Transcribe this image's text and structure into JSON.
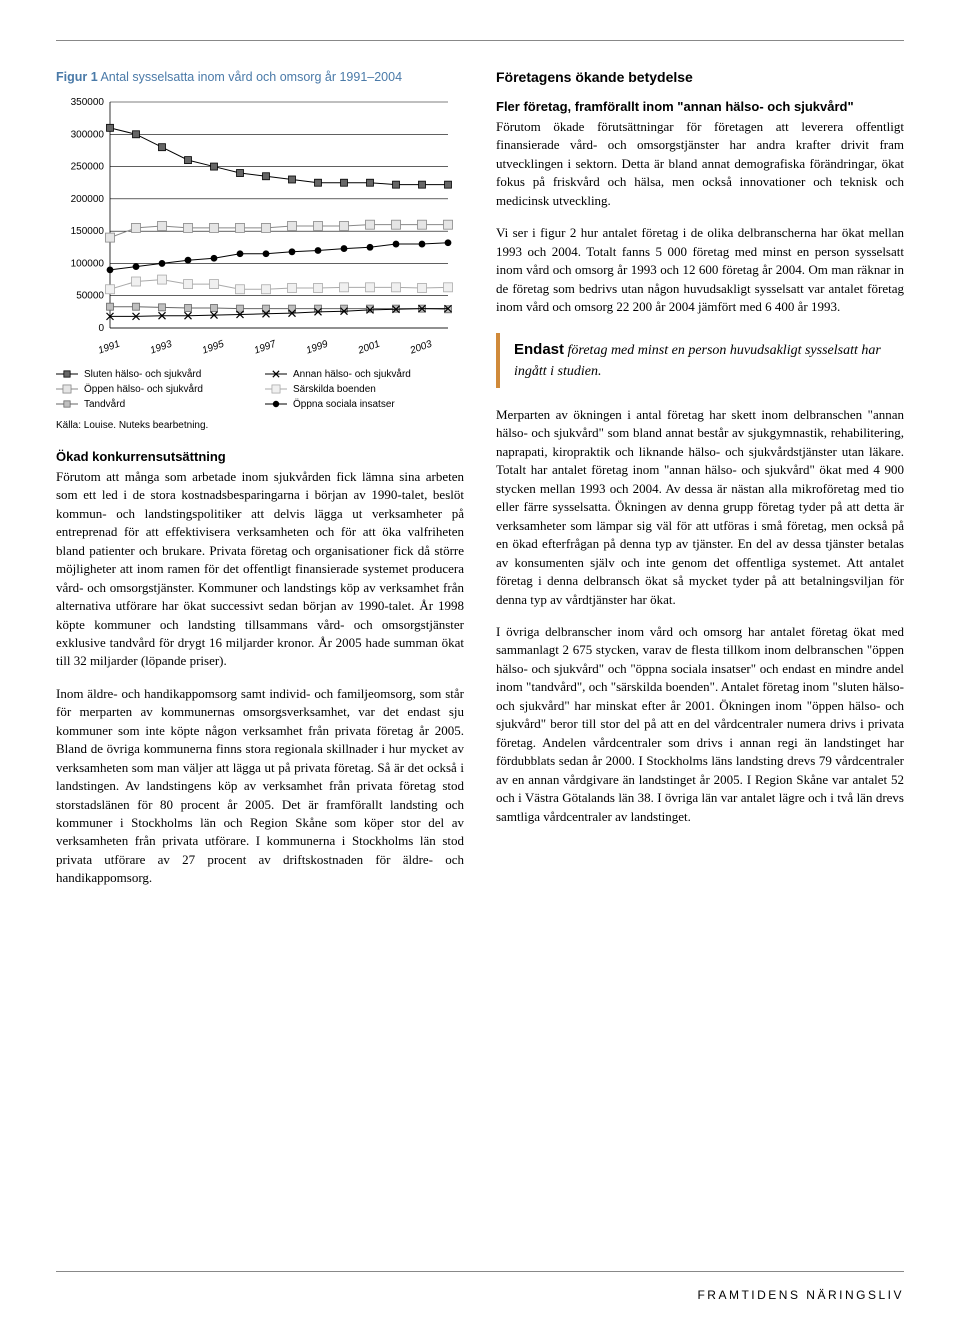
{
  "figure": {
    "label": "Figur 1",
    "title": "Antal sysselsatta inom vård och omsorg år 1991–2004",
    "type": "line",
    "x_categories": [
      "1991",
      "1992",
      "1993",
      "1994",
      "1995",
      "1996",
      "1997",
      "1998",
      "1999",
      "2000",
      "2001",
      "2002",
      "2003",
      "2004"
    ],
    "x_ticks_shown": [
      "1991",
      "1993",
      "1995",
      "1997",
      "1999",
      "2001",
      "2003"
    ],
    "ylim": [
      0,
      350000
    ],
    "ytick_step": 50000,
    "yticks": [
      "0",
      "50000",
      "100000",
      "150000",
      "200000",
      "250000",
      "300000",
      "350000"
    ],
    "background_color": "#ffffff",
    "grid_color": "#000000",
    "label_fontsize": 10,
    "series": [
      {
        "name": "Sluten hälso- och sjukvård",
        "marker": "square",
        "size": 7,
        "fill": "#666666",
        "stroke": "#000000",
        "values": [
          310000,
          300000,
          280000,
          260000,
          250000,
          240000,
          235000,
          230000,
          225000,
          225000,
          225000,
          222000,
          222000,
          222000
        ]
      },
      {
        "name": "Öppen hälso- och sjukvård",
        "marker": "square",
        "size": 9,
        "fill": "#e5e5e5",
        "stroke": "#888888",
        "values": [
          140000,
          155000,
          158000,
          155000,
          155000,
          155000,
          155000,
          158000,
          158000,
          158000,
          160000,
          160000,
          160000,
          160000
        ]
      },
      {
        "name": "Tandvård",
        "marker": "square",
        "size": 7,
        "fill": "#bfbfbf",
        "stroke": "#666666",
        "values": [
          33000,
          33000,
          32000,
          31000,
          31000,
          30000,
          30000,
          30000,
          30000,
          30000,
          30000,
          30000,
          30000,
          29000
        ]
      },
      {
        "name": "Annan hälso- och sjukvård",
        "marker": "x",
        "size": 7,
        "fill": "none",
        "stroke": "#000000",
        "values": [
          18000,
          18000,
          19000,
          19000,
          20000,
          21000,
          22000,
          23000,
          25000,
          26000,
          28000,
          29000,
          30000,
          30000
        ]
      },
      {
        "name": "Särskilda boenden",
        "marker": "square",
        "size": 9,
        "fill": "#f0f0f0",
        "stroke": "#aaaaaa",
        "values": [
          60000,
          72000,
          75000,
          68000,
          68000,
          60000,
          60000,
          62000,
          62000,
          63000,
          63000,
          63000,
          62000,
          63000
        ]
      },
      {
        "name": "Öppna sociala insatser",
        "marker": "circle",
        "size": 6,
        "fill": "#000000",
        "stroke": "#000000",
        "values": [
          90000,
          95000,
          100000,
          105000,
          108000,
          115000,
          115000,
          118000,
          120000,
          123000,
          125000,
          130000,
          130000,
          132000
        ]
      }
    ],
    "legend_layout": "2col",
    "source": "Källa: Louise. Nuteks bearbetning."
  },
  "left": {
    "h1": "Ökad konkurrensutsättning",
    "p1": "Förutom att många som arbetade inom sjukvården fick lämna sina arbeten som ett led i de stora kostnadsbesparingarna i början av 1990-talet, beslöt kommun- och landstingspolitiker att delvis lägga ut verksamheter på entreprenad för att effektivisera verksamheten och för att öka valfriheten bland patienter och brukare. Privata företag och organisationer fick då större möjligheter att inom ramen för det offentligt finansierade systemet producera vård- och omsorgstjänster. Kommuner och landstings köp av verksamhet från alternativa utförare har ökat successivt sedan början av 1990-talet. År 1998 köpte kommuner och landsting tillsammans vård- och omsorgstjänster exklusive tandvård för drygt 16 miljarder kronor. År 2005 hade summan ökat till 32 miljarder (löpande priser).",
    "p2": "Inom äldre- och handikappomsorg samt individ- och familjeomsorg, som står för merparten av kommunernas omsorgsverksamhet, var det endast sju kommuner som inte köpte någon verksamhet från privata företag år 2005. Bland de övriga kommunerna finns stora regionala skillnader i hur mycket av verksamheten som man väljer att lägga ut på privata företag. Så är det också i landstingen. Av landstingens köp av verksamhet från privata företag stod storstadslänen för 80 procent år 2005. Det är framförallt landsting och kommuner i Stockholms län och Region Skåne som köper stor del av verksamheten från privata utförare. I kommunerna i Stockholms län stod privata utförare av 27 procent av driftskostnaden för äldre- och handikappomsorg."
  },
  "right": {
    "heading": "Företagens ökande betydelse",
    "h1": "Fler företag, framförallt inom \"annan hälso- och sjukvård\"",
    "p1": "Förutom ökade förutsättningar för företagen att leverera offentligt finansierade vård- och omsorgstjänster har andra krafter drivit fram utvecklingen i sektorn. Detta är bland annat demografiska förändringar, ökat fokus på friskvård och hälsa, men också innovationer och teknisk och medicinsk utveckling.",
    "p2": "Vi ser i figur 2 hur antalet företag i de olika delbranscherna har ökat mellan 1993 och 2004. Totalt fanns 5 000 företag med minst en person sysselsatt inom vård och omsorg år 1993 och 12 600 företag år 2004. Om man räknar in de företag som bedrivs utan någon huvudsakligt sysselsatt var antalet företag inom vård och omsorg 22 200 år 2004 jämfört med 6 400 år 1993.",
    "callout_lead": "Endast",
    "callout_rest": " företag med minst en person huvudsakligt sysselsatt har ingått i studien.",
    "p3": "Merparten av ökningen i antal företag har skett inom delbranschen \"annan hälso- och sjukvård\" som bland annat består av sjukgymnastik, rehabilitering, naprapati, kiropraktik och liknande hälso- och sjukvårdstjänster utan läkare. Totalt har antalet företag inom \"annan hälso- och sjukvård\" ökat med 4 900 stycken mellan 1993 och 2004. Av dessa är nästan alla mikroföretag med tio eller färre sysselsatta. Ökningen av denna grupp företag tyder på att detta är verksamheter som lämpar sig väl för att utföras i små företag, men också på en ökad efterfrågan på denna typ av tjänster. En del av dessa tjänster betalas av konsumenten själv och inte genom det offentliga systemet. Att antalet företag i denna delbransch ökat så mycket tyder på att betalningsviljan för denna typ av vårdtjänster har ökat.",
    "p4": "I övriga delbranscher inom vård och omsorg har antalet företag ökat med sammanlagt 2 675 stycken, varav de flesta tillkom inom delbranschen \"öppen hälso- och sjukvård\" och \"öppna sociala insatser\" och endast en mindre andel inom \"tandvård\", och \"särskilda boenden\". Antalet företag inom \"sluten hälso- och sjukvård\" har minskat efter år 2001. Ökningen inom \"öppen hälso- och sjukvård\" beror till stor del på att en del vårdcentraler numera drivs i privata företag. Andelen vårdcentraler som drivs i annan regi än landstinget har fördubblats sedan år 2000. I Stockholms läns landsting drevs 79 vårdcentraler av en annan vårdgivare än landstinget år 2005. I Region Skåne var antalet 52 och i Västra Götalands län 38. I övriga län var antalet lägre och i två län drevs samtliga vårdcentraler av landstinget."
  },
  "footer": "FRAMTIDENS NÄRINGSLIV"
}
